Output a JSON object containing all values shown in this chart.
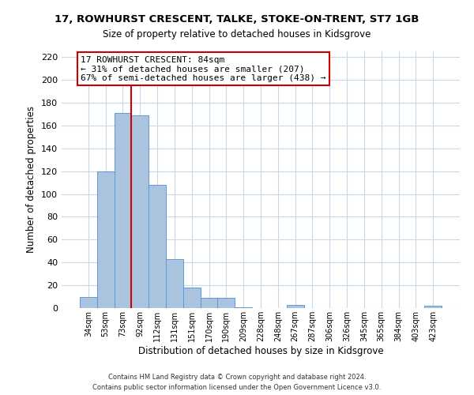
{
  "title": "17, ROWHURST CRESCENT, TALKE, STOKE-ON-TRENT, ST7 1GB",
  "subtitle": "Size of property relative to detached houses in Kidsgrove",
  "xlabel": "Distribution of detached houses by size in Kidsgrove",
  "ylabel": "Number of detached properties",
  "bar_labels": [
    "34sqm",
    "53sqm",
    "73sqm",
    "92sqm",
    "112sqm",
    "131sqm",
    "151sqm",
    "170sqm",
    "190sqm",
    "209sqm",
    "228sqm",
    "248sqm",
    "267sqm",
    "287sqm",
    "306sqm",
    "326sqm",
    "345sqm",
    "365sqm",
    "384sqm",
    "403sqm",
    "423sqm"
  ],
  "bar_heights": [
    10,
    120,
    171,
    169,
    108,
    43,
    18,
    9,
    9,
    1,
    0,
    0,
    3,
    0,
    0,
    0,
    0,
    0,
    0,
    0,
    2
  ],
  "bar_color": "#aac4e0",
  "bar_edge_color": "#5b9bd5",
  "property_line_x": 2.5,
  "annotation_title": "17 ROWHURST CRESCENT: 84sqm",
  "annotation_line1": "← 31% of detached houses are smaller (207)",
  "annotation_line2": "67% of semi-detached houses are larger (438) →",
  "annotation_box_color": "#ffffff",
  "annotation_box_edge": "#cc0000",
  "property_line_color": "#cc0000",
  "ylim": [
    0,
    225
  ],
  "yticks": [
    0,
    20,
    40,
    60,
    80,
    100,
    120,
    140,
    160,
    180,
    200,
    220
  ],
  "footer_line1": "Contains HM Land Registry data © Crown copyright and database right 2024.",
  "footer_line2": "Contains public sector information licensed under the Open Government Licence v3.0.",
  "background_color": "#ffffff",
  "grid_color": "#c8d8e8"
}
